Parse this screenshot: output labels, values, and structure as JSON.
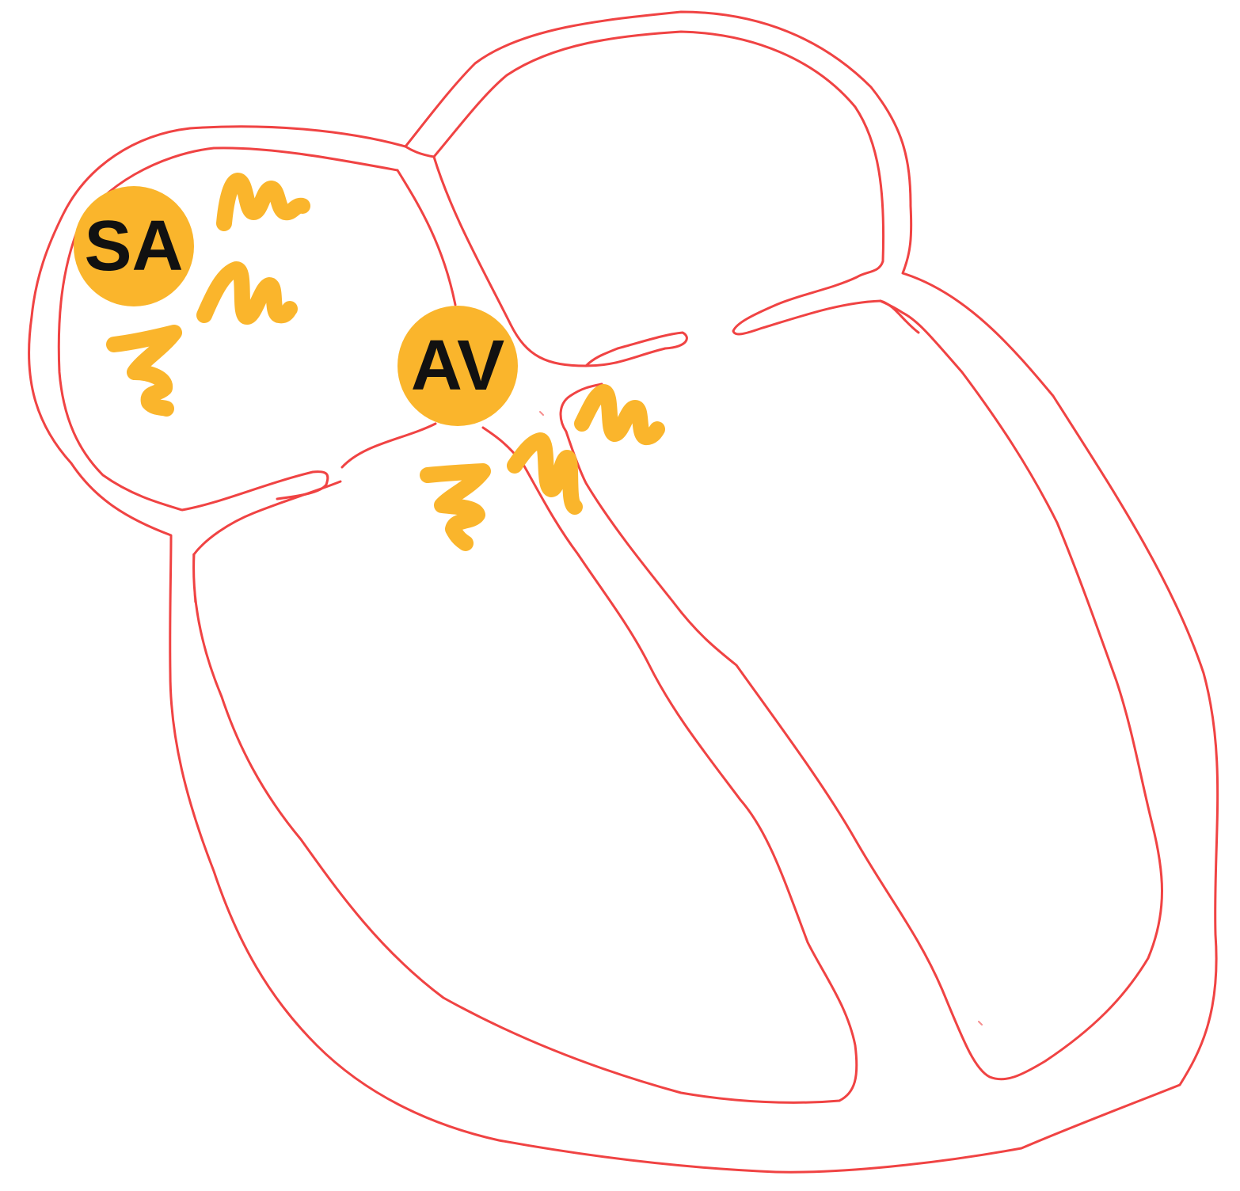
{
  "diagram": {
    "nodes": {
      "sa": {
        "label": "SA"
      },
      "av": {
        "label": "AV"
      }
    },
    "colors": {
      "wall": "#f04343",
      "node": "#fab52c",
      "impulse": "#fab52c",
      "label": "#111111",
      "background": "#ffffff"
    },
    "icons": [
      "electrical-impulse-squiggle"
    ]
  }
}
